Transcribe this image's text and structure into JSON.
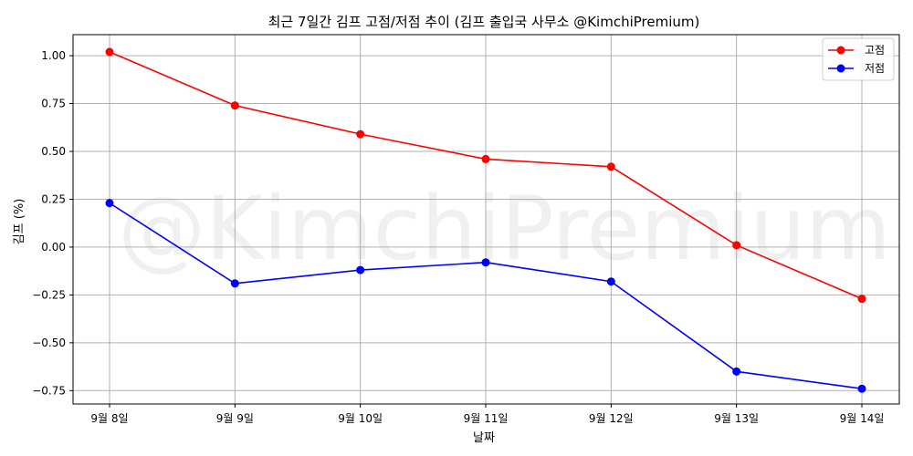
{
  "chart_data": {
    "type": "line",
    "title": "최근 7일간 김프 고점/저점 추이 (김프 출입국 사무소 @KimchiPremium)",
    "xlabel": "날짜",
    "ylabel": "김프 (%)",
    "categories": [
      "9월 8일",
      "9월 9일",
      "9월 10일",
      "9월 11일",
      "9월 12일",
      "9월 13일",
      "9월 14일"
    ],
    "series": [
      {
        "name": "고점",
        "color": "#ff0000",
        "values": [
          1.02,
          0.74,
          0.59,
          0.46,
          0.42,
          0.01,
          -0.27
        ]
      },
      {
        "name": "저점",
        "color": "#0000ff",
        "values": [
          0.23,
          -0.19,
          -0.12,
          -0.08,
          -0.18,
          -0.65,
          -0.74
        ]
      }
    ],
    "ylim": [
      -0.82,
      1.11
    ],
    "yticks": [
      -0.75,
      -0.5,
      -0.25,
      0.0,
      0.25,
      0.5,
      0.75,
      1.0
    ],
    "ytick_labels": [
      "−0.75",
      "−0.50",
      "−0.25",
      "0.00",
      "0.25",
      "0.50",
      "0.75",
      "1.00"
    ],
    "grid": true,
    "legend_position": "top-right",
    "watermark": "@KimchiPremium"
  }
}
